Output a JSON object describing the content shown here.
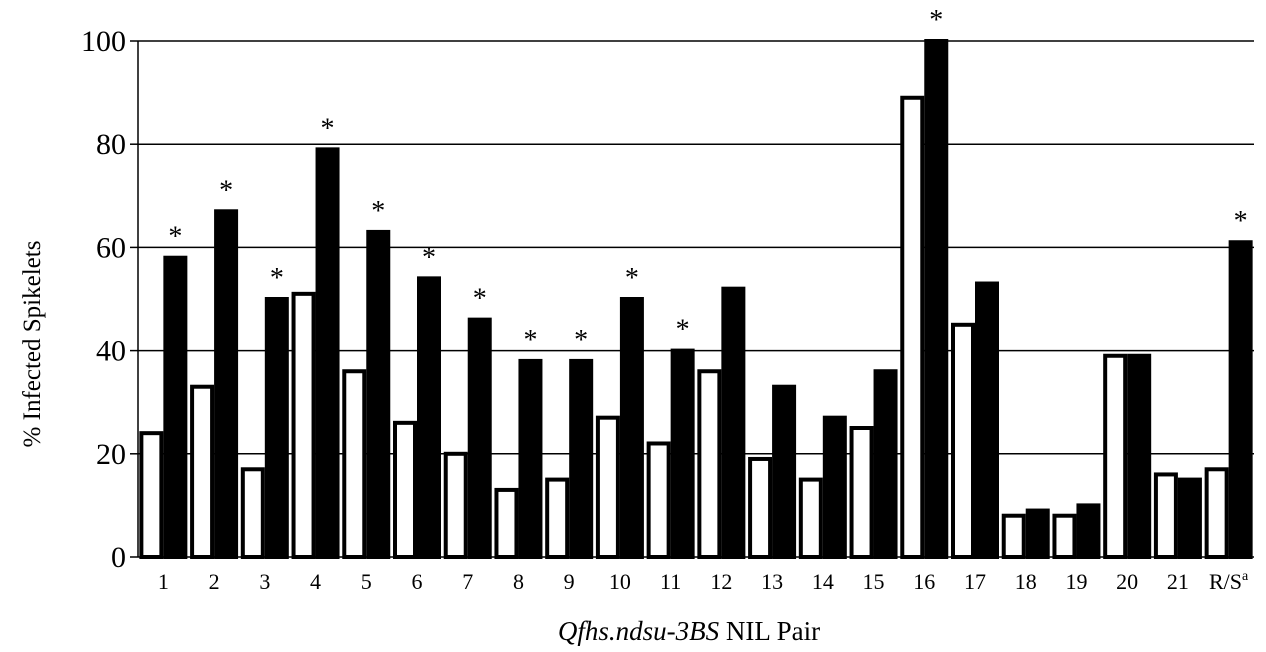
{
  "chart_data": {
    "type": "bar",
    "xlabel_italic": "Qfhs.ndsu-3BS",
    "xlabel_rest": " NIL Pair",
    "ylabel": "% Infected Spikelets",
    "ylim": [
      0,
      100
    ],
    "yticks": [
      0,
      20,
      40,
      60,
      80,
      100
    ],
    "grid": true,
    "legend": "none",
    "categories": [
      "1",
      "2",
      "3",
      "4",
      "5",
      "6",
      "7",
      "8",
      "9",
      "10",
      "11",
      "12",
      "13",
      "14",
      "15",
      "16",
      "17",
      "18",
      "19",
      "20",
      "21",
      "R/S"
    ],
    "last_category_superscript": "a",
    "series": [
      {
        "fill": "#ffffff",
        "values": [
          24,
          33,
          17,
          51,
          36,
          26,
          20,
          13,
          15,
          27,
          22,
          36,
          19,
          15,
          25,
          89,
          45,
          8,
          8,
          39,
          16,
          17
        ]
      },
      {
        "fill": "#000000",
        "values": [
          58,
          67,
          50,
          79,
          63,
          54,
          46,
          38,
          38,
          50,
          40,
          52,
          33,
          27,
          36,
          100,
          53,
          9,
          10,
          39,
          15,
          61
        ]
      }
    ],
    "significance_marker": "*",
    "significant": [
      "1",
      "2",
      "3",
      "4",
      "5",
      "6",
      "7",
      "8",
      "9",
      "10",
      "11",
      "16",
      "R/S"
    ]
  }
}
